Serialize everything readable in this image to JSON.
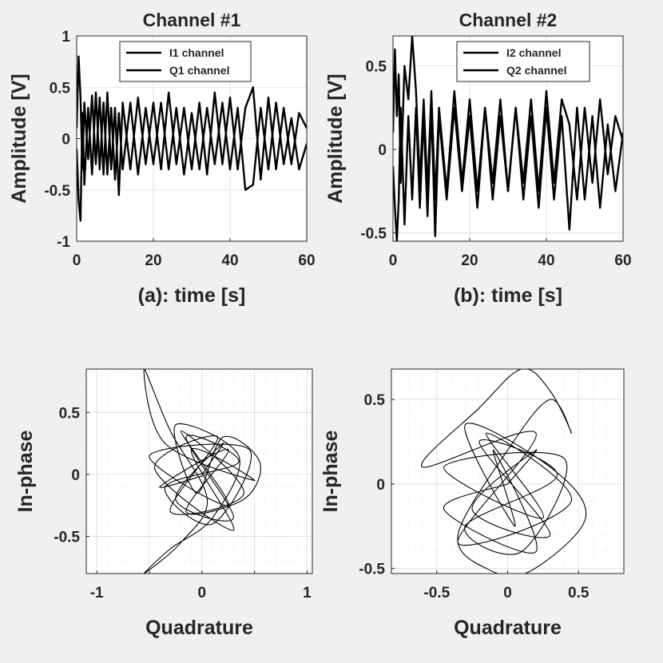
{
  "chart_data": [
    {
      "type": "line",
      "title": "Channel #1",
      "xlabel": "(a): time [s]",
      "ylabel": "Amplitude [V]",
      "xlim": [
        0,
        60
      ],
      "ylim": [
        -1,
        1
      ],
      "xticks": [
        0,
        20,
        40,
        60
      ],
      "yticks": [
        -1,
        -0.5,
        0,
        0.5,
        1
      ],
      "xtick_labels": [
        "0",
        "20",
        "40",
        "60"
      ],
      "ytick_labels": [
        "-1",
        "-0.5",
        "0",
        "0.5",
        "1"
      ],
      "grid": true,
      "legend_position": "top-right",
      "series": [
        {
          "name": "I1 channel",
          "color": "#000000",
          "x": [
            0,
            0.5,
            1,
            1.5,
            2,
            3,
            4,
            5,
            6,
            7,
            8,
            9,
            10,
            11,
            12,
            14,
            16,
            18,
            20,
            22,
            24,
            26,
            28,
            30,
            32,
            34,
            36,
            38,
            40,
            42,
            44,
            46,
            48,
            50,
            52,
            54,
            56,
            58,
            60
          ],
          "y": [
            0.1,
            0.8,
            0.4,
            -0.3,
            0.35,
            -0.2,
            0.42,
            -0.25,
            0.4,
            -0.35,
            0.45,
            -0.3,
            0.3,
            -0.55,
            0.35,
            -0.3,
            0.4,
            -0.25,
            0.35,
            -0.3,
            0.45,
            -0.25,
            0.3,
            -0.3,
            0.35,
            -0.35,
            0.45,
            -0.25,
            0.4,
            -0.3,
            0.3,
            0.5,
            -0.4,
            0.4,
            -0.3,
            0.3,
            -0.25,
            0.25,
            0.1
          ]
        },
        {
          "name": "Q1 channel",
          "color": "#000000",
          "x": [
            0,
            0.5,
            1,
            1.5,
            2,
            3,
            4,
            5,
            6,
            7,
            8,
            9,
            10,
            11,
            12,
            14,
            16,
            18,
            20,
            22,
            24,
            26,
            28,
            30,
            32,
            34,
            36,
            38,
            40,
            42,
            44,
            46,
            48,
            50,
            52,
            54,
            56,
            58,
            60
          ],
          "y": [
            -0.1,
            -0.6,
            -0.8,
            0.25,
            -0.45,
            0.3,
            -0.35,
            0.45,
            -0.3,
            0.35,
            -0.35,
            0.3,
            -0.4,
            0.25,
            -0.3,
            0.35,
            -0.35,
            0.3,
            -0.25,
            0.35,
            -0.3,
            0.3,
            -0.35,
            0.25,
            -0.3,
            0.3,
            -0.25,
            0.35,
            -0.3,
            0.3,
            -0.5,
            -0.45,
            0.3,
            -0.3,
            0.35,
            -0.25,
            0.2,
            -0.3,
            -0.05
          ]
        }
      ]
    },
    {
      "type": "line",
      "title": "Channel #2",
      "xlabel": "(b): time [s]",
      "ylabel": "Amplitude [V]",
      "xlim": [
        0,
        60
      ],
      "ylim": [
        -0.55,
        0.68
      ],
      "xticks": [
        0,
        20,
        40,
        60
      ],
      "yticks": [
        -0.5,
        0,
        0.5
      ],
      "xtick_labels": [
        "0",
        "20",
        "40",
        "60"
      ],
      "ytick_labels": [
        "-0.5",
        "0",
        "0.5"
      ],
      "grid": true,
      "legend_position": "top-right",
      "series": [
        {
          "name": "I2 channel",
          "color": "#000000",
          "x": [
            0,
            0.5,
            1,
            1.5,
            2,
            3,
            4,
            5,
            6,
            7,
            8,
            9,
            10,
            11,
            12,
            14,
            16,
            18,
            20,
            22,
            24,
            26,
            28,
            30,
            32,
            34,
            36,
            38,
            40,
            42,
            44,
            46,
            48,
            50,
            52,
            54,
            56,
            58,
            60
          ],
          "y": [
            0.1,
            0.6,
            0.2,
            0.45,
            -0.2,
            0.5,
            0.3,
            0.68,
            0.35,
            -0.2,
            0.3,
            -0.25,
            0.35,
            -0.3,
            0.25,
            -0.25,
            0.35,
            -0.2,
            0.3,
            -0.25,
            0.25,
            -0.2,
            0.3,
            -0.25,
            0.25,
            -0.2,
            0.3,
            -0.25,
            0.35,
            -0.2,
            0.3,
            0.15,
            -0.3,
            0.25,
            -0.2,
            0.3,
            -0.15,
            0.2,
            0.05
          ]
        },
        {
          "name": "Q2 channel",
          "color": "#000000",
          "x": [
            0,
            0.5,
            1,
            1.5,
            2,
            3,
            4,
            5,
            6,
            7,
            8,
            9,
            10,
            11,
            12,
            14,
            16,
            18,
            20,
            22,
            24,
            26,
            28,
            30,
            32,
            34,
            36,
            38,
            40,
            42,
            44,
            46,
            48,
            50,
            52,
            54,
            56,
            58,
            60
          ],
          "y": [
            -0.1,
            -0.35,
            -0.55,
            -0.3,
            0.25,
            -0.45,
            0.2,
            -0.3,
            0.25,
            -0.35,
            0.2,
            -0.4,
            0.25,
            -0.52,
            0.2,
            -0.3,
            0.25,
            -0.25,
            0.2,
            -0.35,
            0.25,
            -0.3,
            0.2,
            -0.25,
            0.25,
            -0.3,
            0.2,
            -0.35,
            0.25,
            -0.3,
            0.2,
            -0.48,
            0.25,
            -0.3,
            0.2,
            -0.35,
            0.15,
            -0.25,
            0.1
          ]
        }
      ]
    },
    {
      "type": "line",
      "title": "",
      "xlabel": "Quadrature",
      "ylabel": "In-phase",
      "xlim": [
        -1.1,
        1.05
      ],
      "ylim": [
        -0.8,
        0.85
      ],
      "xticks": [
        -1,
        -0.5,
        0,
        0.5,
        1
      ],
      "yticks": [
        -0.5,
        0,
        0.5
      ],
      "xtick_labels": [
        "-1",
        "",
        "0",
        "",
        "1"
      ],
      "ytick_labels": [
        "-0.5",
        "0",
        "0.5"
      ],
      "grid": true,
      "series": [
        {
          "name": "",
          "color": "#000000",
          "x": [
            0.0,
            0.2,
            -0.25,
            0.3,
            -0.15,
            0.35,
            -0.35,
            0.1,
            0.45,
            -0.5,
            0.25,
            -0.2,
            0.4,
            -0.3,
            0.15,
            -0.45,
            0.3,
            -0.1,
            0.5,
            -0.35,
            -0.55,
            -0.3,
            0.05,
            -0.2,
            -0.55,
            -0.3,
            0.1,
            0.35,
            -0.25,
            -0.05,
            0.2,
            0.55,
            0.4,
            -0.15,
            0.25,
            -0.4,
            0.05
          ],
          "y": [
            0.0,
            0.25,
            -0.2,
            -0.35,
            0.3,
            0.1,
            -0.1,
            -0.4,
            0.2,
            0.15,
            -0.25,
            0.35,
            -0.15,
            -0.3,
            0.3,
            0.05,
            -0.45,
            0.2,
            -0.05,
            0.25,
            0.85,
            0.35,
            -0.2,
            -0.55,
            -0.8,
            -0.6,
            -0.35,
            0.15,
            0.4,
            -0.15,
            0.3,
            0.1,
            -0.2,
            -0.3,
            0.2,
            -0.1,
            0.0
          ]
        }
      ]
    },
    {
      "type": "line",
      "title": "",
      "xlabel": "Quadrature",
      "ylabel": "In-phase",
      "xlim": [
        -0.82,
        0.82
      ],
      "ylim": [
        -0.53,
        0.68
      ],
      "xticks": [
        -0.5,
        0,
        0.5
      ],
      "yticks": [
        -0.5,
        0,
        0.5
      ],
      "xtick_labels": [
        "-0.5",
        "0",
        "0.5"
      ],
      "ytick_labels": [
        "-0.5",
        "0",
        "0.5"
      ],
      "grid": true,
      "series": [
        {
          "name": "",
          "color": "#000000",
          "x": [
            0.0,
            0.2,
            -0.25,
            0.3,
            -0.2,
            0.35,
            -0.3,
            0.1,
            0.4,
            -0.45,
            0.25,
            -0.15,
            0.45,
            -0.35,
            0.2,
            -0.6,
            -0.2,
            0.1,
            0.3,
            0.45,
            0.3,
            0.0,
            -0.35,
            -0.15,
            0.15,
            0.55,
            0.3,
            -0.3,
            0.05,
            -0.1,
            0.2,
            -0.45,
            0.0
          ],
          "y": [
            0.0,
            0.2,
            -0.15,
            -0.3,
            0.25,
            0.05,
            -0.25,
            -0.4,
            0.15,
            0.1,
            -0.2,
            0.3,
            -0.1,
            -0.35,
            0.3,
            0.1,
            0.45,
            0.68,
            0.55,
            0.3,
            0.5,
            0.2,
            -0.3,
            -0.5,
            -0.52,
            -0.2,
            0.1,
            0.35,
            -0.25,
            0.2,
            -0.4,
            -0.15,
            0.0
          ]
        }
      ]
    }
  ]
}
